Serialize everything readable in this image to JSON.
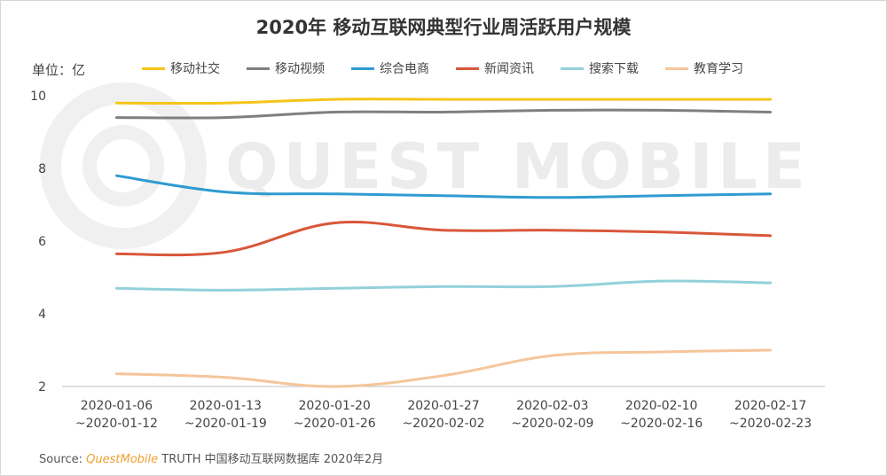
{
  "title": "2020年 移动互联网典型行业周活跃用户规模",
  "unit_label": "单位：亿",
  "watermark_text": "QUEST MOBILE",
  "source": {
    "prefix": "Source: ",
    "brand": "QuestMobile",
    "rest": " TRUTH 中国移动互联网数据库 2020年2月"
  },
  "chart_data": {
    "type": "line",
    "ylim": [
      2,
      10
    ],
    "yticks": [
      2,
      4,
      6,
      8,
      10
    ],
    "grid": false,
    "legend_position": "top",
    "categories": [
      [
        "2020-01-06",
        "~2020-01-12"
      ],
      [
        "2020-01-13",
        "~2020-01-19"
      ],
      [
        "2020-01-20",
        "~2020-01-26"
      ],
      [
        "2020-01-27",
        "~2020-02-02"
      ],
      [
        "2020-02-03",
        "~2020-02-09"
      ],
      [
        "2020-02-10",
        "~2020-02-16"
      ],
      [
        "2020-02-17",
        "~2020-02-23"
      ]
    ],
    "series": [
      {
        "name": "移动社交",
        "color": "#f5c518",
        "values": [
          9.8,
          9.8,
          9.9,
          9.9,
          9.9,
          9.9,
          9.9
        ]
      },
      {
        "name": "移动视频",
        "color": "#7f7f7f",
        "values": [
          9.4,
          9.4,
          9.55,
          9.55,
          9.6,
          9.6,
          9.55
        ]
      },
      {
        "name": "综合电商",
        "color": "#2f9bd1",
        "values": [
          7.8,
          7.35,
          7.3,
          7.25,
          7.2,
          7.25,
          7.3
        ]
      },
      {
        "name": "新闻资讯",
        "color": "#d9573a",
        "values": [
          5.65,
          5.7,
          6.5,
          6.3,
          6.3,
          6.25,
          6.15
        ]
      },
      {
        "name": "搜索下载",
        "color": "#93d0dc",
        "values": [
          4.7,
          4.65,
          4.7,
          4.75,
          4.75,
          4.9,
          4.85
        ]
      },
      {
        "name": "教育学习",
        "color": "#f5c59a",
        "values": [
          2.35,
          2.25,
          2.0,
          2.3,
          2.85,
          2.95,
          3.0
        ]
      }
    ]
  }
}
